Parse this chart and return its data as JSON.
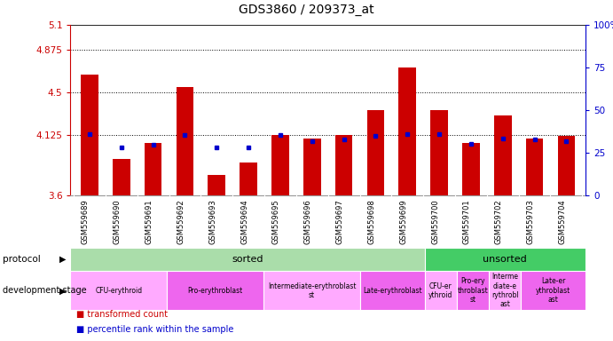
{
  "title": "GDS3860 / 209373_at",
  "samples": [
    "GSM559689",
    "GSM559690",
    "GSM559691",
    "GSM559692",
    "GSM559693",
    "GSM559694",
    "GSM559695",
    "GSM559696",
    "GSM559697",
    "GSM559698",
    "GSM559699",
    "GSM559700",
    "GSM559701",
    "GSM559702",
    "GSM559703",
    "GSM559704"
  ],
  "red_values": [
    4.66,
    3.92,
    4.06,
    4.55,
    3.78,
    3.89,
    4.13,
    4.1,
    4.13,
    4.35,
    4.72,
    4.35,
    4.06,
    4.3,
    4.1,
    4.12
  ],
  "blue_values": [
    4.14,
    4.02,
    4.04,
    4.125,
    4.02,
    4.02,
    4.13,
    4.07,
    4.09,
    4.12,
    4.14,
    4.14,
    4.05,
    4.1,
    4.09,
    4.07
  ],
  "ymin": 3.6,
  "ymax": 5.1,
  "yticks": [
    3.6,
    4.125,
    4.5,
    4.875,
    5.1
  ],
  "ytick_labels": [
    "3.6",
    "4.125",
    "4.5",
    "4.875",
    "5.1"
  ],
  "right_yticks": [
    0,
    25,
    50,
    75,
    100
  ],
  "right_ytick_labels": [
    "0",
    "25",
    "50",
    "75",
    "100%"
  ],
  "protocol": [
    {
      "label": "sorted",
      "start": 0,
      "end": 11,
      "color": "#aaddaa"
    },
    {
      "label": "unsorted",
      "start": 11,
      "end": 16,
      "color": "#44cc66"
    }
  ],
  "dev_stage": [
    {
      "label": "CFU-erythroid",
      "start": 0,
      "end": 3,
      "color": "#ffaaff"
    },
    {
      "label": "Pro-erythroblast",
      "start": 3,
      "end": 6,
      "color": "#ee66ee"
    },
    {
      "label": "Intermediate-erythroblast\nst",
      "start": 6,
      "end": 9,
      "color": "#ffaaff"
    },
    {
      "label": "Late-erythroblast",
      "start": 9,
      "end": 11,
      "color": "#ee66ee"
    },
    {
      "label": "CFU-er\nythroid",
      "start": 11,
      "end": 12,
      "color": "#ffaaff"
    },
    {
      "label": "Pro-ery\nthroblast\nst",
      "start": 12,
      "end": 13,
      "color": "#ee66ee"
    },
    {
      "label": "Interme\ndiate-e\nrythrobl\nast",
      "start": 13,
      "end": 14,
      "color": "#ffaaff"
    },
    {
      "label": "Late-er\nythroblast\nast",
      "start": 14,
      "end": 16,
      "color": "#ee66ee"
    }
  ],
  "bar_color": "#cc0000",
  "blue_color": "#0000cc",
  "axis_color": "#cc0000",
  "right_axis_color": "#0000cc",
  "bg_color": "#d8d8d8",
  "chart_bg": "#ffffff"
}
